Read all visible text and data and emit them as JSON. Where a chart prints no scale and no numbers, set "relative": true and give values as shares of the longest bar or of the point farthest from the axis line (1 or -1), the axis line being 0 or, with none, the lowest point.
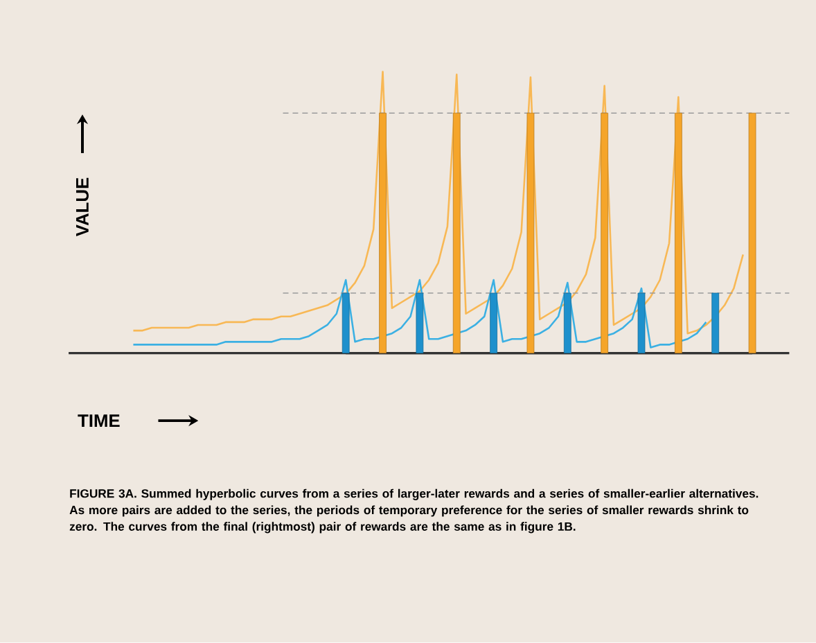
{
  "chart_data": [
    {
      "type": "line",
      "relative": true,
      "xlabel": "TIME",
      "ylabel": "VALUE",
      "categories": [
        null,
        null,
        null,
        null,
        null,
        null,
        null,
        null,
        null,
        null,
        null,
        null,
        null,
        null,
        null,
        null,
        null,
        null,
        null,
        null,
        null,
        null,
        null,
        null,
        null,
        null,
        null,
        null,
        null,
        null,
        null,
        null,
        null,
        null,
        null,
        null,
        null,
        null,
        null,
        null,
        null,
        null,
        null,
        null,
        null,
        null,
        null,
        null,
        null,
        null,
        null,
        null,
        null,
        null,
        null,
        null,
        null,
        null,
        null,
        null,
        null,
        null,
        null,
        null,
        null,
        null,
        null,
        null,
        null,
        null,
        null,
        null,
        null,
        null,
        null,
        null,
        null,
        null,
        null
      ],
      "series": [
        {
          "color": "#f8b855",
          "values": [
            null,
            null,
            null,
            null,
            null,
            null,
            null,
            0.08,
            0.08,
            0.09,
            0.09,
            0.09,
            0.09,
            0.09,
            0.1,
            0.1,
            0.1,
            0.11,
            0.11,
            0.11,
            0.12,
            0.12,
            0.12,
            0.13,
            0.13,
            0.14,
            0.15,
            0.16,
            0.17,
            0.19,
            0.21,
            0.25,
            0.31,
            0.44,
            1.0,
            0.16,
            0.18,
            0.2,
            0.22,
            0.26,
            0.32,
            0.45,
            0.99,
            0.14,
            0.16,
            0.18,
            0.2,
            0.24,
            0.3,
            0.43,
            0.98,
            0.12,
            0.14,
            0.16,
            0.18,
            0.22,
            0.28,
            0.41,
            0.95,
            0.1,
            0.12,
            0.14,
            0.16,
            0.2,
            0.26,
            0.39,
            0.91,
            0.07,
            0.08,
            0.1,
            0.13,
            0.17,
            0.23,
            0.35,
            null,
            null,
            null,
            null,
            null
          ]
        },
        {
          "color": "#3bb0e3",
          "values": [
            null,
            null,
            null,
            null,
            null,
            null,
            null,
            0.03,
            0.03,
            0.03,
            0.03,
            0.03,
            0.03,
            0.03,
            0.03,
            0.03,
            0.03,
            0.04,
            0.04,
            0.04,
            0.04,
            0.04,
            0.04,
            0.05,
            0.05,
            0.05,
            0.06,
            0.08,
            0.1,
            0.14,
            0.26,
            0.04,
            0.05,
            0.05,
            0.06,
            0.07,
            0.09,
            0.13,
            0.26,
            0.05,
            0.05,
            0.06,
            0.07,
            0.08,
            0.1,
            0.13,
            0.26,
            0.04,
            0.05,
            0.05,
            0.06,
            0.07,
            0.09,
            0.13,
            0.25,
            0.04,
            0.04,
            0.05,
            0.06,
            0.07,
            0.09,
            0.12,
            0.23,
            0.02,
            0.03,
            0.03,
            0.04,
            0.05,
            0.07,
            0.11,
            null,
            null,
            null,
            null,
            null,
            null,
            null,
            null,
            null
          ]
        }
      ],
      "annotations": [
        "FIGURE 3A.  Summed hyperbolic curves from a series of larger-later rewards and a series of smaller-earlier alternatives.  As more pairs are added to the series, the periods of temporary preference for the series of smaller rewards shrink to zero. The curves from the final (rightmost) pair of rewards are the same as in figure 1B."
      ]
    },
    {
      "type": "bar",
      "relative": true,
      "categories": [
        null,
        null,
        null,
        null,
        null,
        null,
        null,
        null,
        null,
        null,
        null,
        null
      ],
      "values": [
        0.25,
        1,
        0.25,
        1,
        0.25,
        1,
        0.25,
        1,
        0.25,
        1,
        0.25,
        1
      ],
      "colors": [
        "#1e90cc",
        "#f5a52a",
        "#1e90cc",
        "#f5a52a",
        "#1e90cc",
        "#f5a52a",
        "#1e90cc",
        "#f5a52a",
        "#1e90cc",
        "#f5a52a",
        "#1e90cc",
        "#f5a52a"
      ],
      "ref_lines": [
        {
          "axis": "y",
          "value": 1,
          "color": "#9a9a9a",
          "line_style": "dashed"
        },
        {
          "axis": "y",
          "value": 0.25,
          "color": "#9a9a9a",
          "line_style": "dashed"
        }
      ]
    }
  ]
}
